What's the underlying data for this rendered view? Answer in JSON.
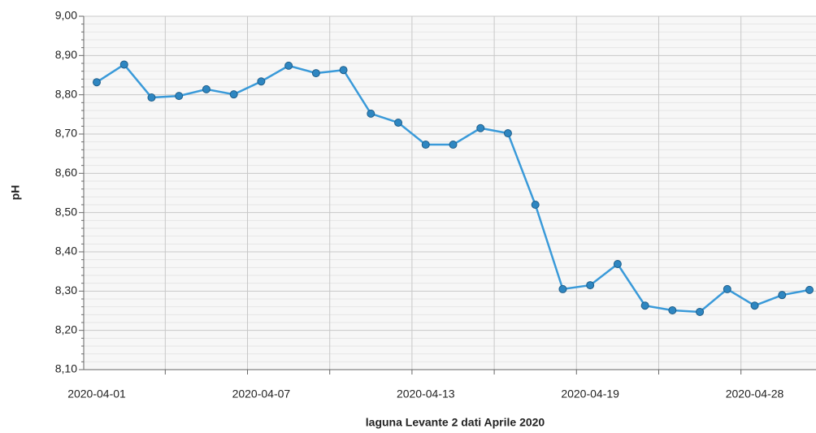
{
  "chart_data": {
    "type": "line",
    "x_label": "laguna Levante 2 dati Aprile 2020",
    "y_label": "pH",
    "categories": [
      "2020-04-01",
      null,
      null,
      null,
      null,
      null,
      "2020-04-07",
      null,
      null,
      null,
      null,
      null,
      "2020-04-13",
      null,
      null,
      null,
      null,
      null,
      "2020-04-19",
      null,
      null,
      null,
      null,
      null,
      "2020-04-28",
      null,
      null
    ],
    "series": [
      {
        "name": "pH",
        "color": "#3a9ad9",
        "values": [
          8.832,
          8.877,
          8.793,
          8.797,
          8.814,
          8.801,
          8.834,
          8.874,
          8.855,
          8.863,
          8.752,
          8.729,
          8.673,
          8.673,
          8.715,
          8.702,
          8.52,
          8.305,
          8.315,
          8.369,
          8.263,
          8.251,
          8.247,
          8.305,
          8.263,
          8.29,
          8.303
        ]
      }
    ],
    "ylim": [
      8.1,
      9.0
    ],
    "yticks": [
      {
        "value": 8.1,
        "label": "8,10"
      },
      {
        "value": 8.2,
        "label": "8,20"
      },
      {
        "value": 8.3,
        "label": "8,30"
      },
      {
        "value": 8.4,
        "label": "8,40"
      },
      {
        "value": 8.5,
        "label": "8,50"
      },
      {
        "value": 8.6,
        "label": "8,60"
      },
      {
        "value": 8.7,
        "label": "8,70"
      },
      {
        "value": 8.8,
        "label": "8,80"
      },
      {
        "value": 8.9,
        "label": "8,90"
      },
      {
        "value": 9.0,
        "label": "9,00"
      }
    ],
    "grid": true
  }
}
